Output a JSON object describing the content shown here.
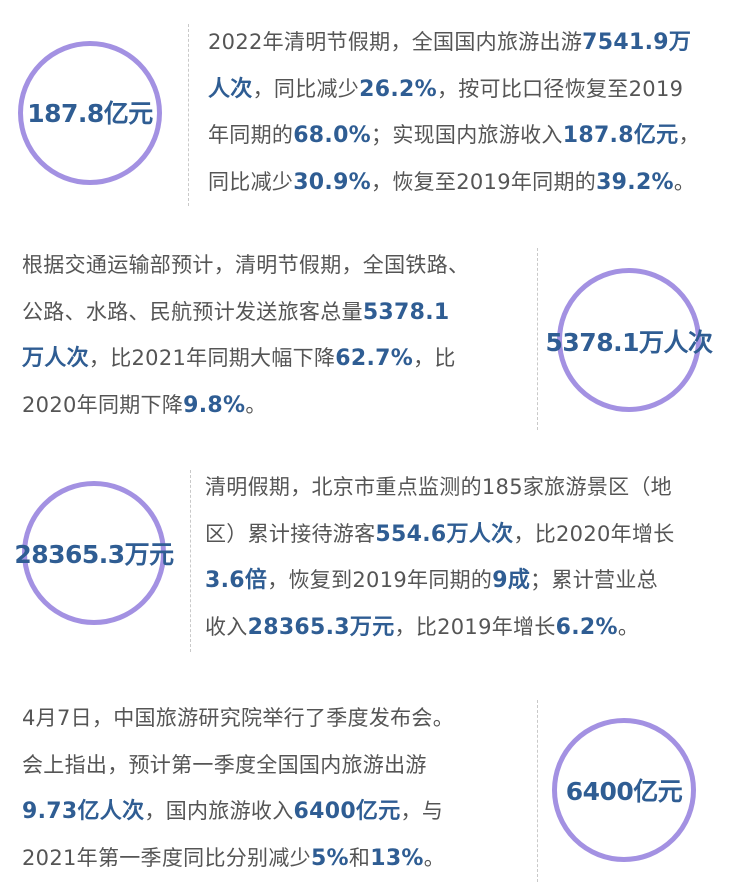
{
  "colors": {
    "circle": "#a391e2",
    "highlight": "#2f5d93",
    "text": "#555555"
  },
  "blocks": [
    {
      "circle_label": "187.8亿元",
      "lines": [
        [
          {
            "t": "2022年清明节假期，全国国内旅游出游"
          },
          {
            "t": "7541.9万",
            "b": true
          }
        ],
        [
          {
            "t": "人次",
            "b": true
          },
          {
            "t": "，同比减少"
          },
          {
            "t": "26.2%",
            "b": true
          },
          {
            "t": "，按可比口径恢复至2019"
          }
        ],
        [
          {
            "t": "年同期的"
          },
          {
            "t": "68.0%",
            "b": true
          },
          {
            "t": "；实现国内旅游收入"
          },
          {
            "t": "187.8亿元",
            "b": true
          },
          {
            "t": "，"
          }
        ],
        [
          {
            "t": "同比减少"
          },
          {
            "t": "30.9%",
            "b": true
          },
          {
            "t": "，恢复至2019年同期的"
          },
          {
            "t": "39.2%",
            "b": true
          },
          {
            "t": "。"
          }
        ]
      ]
    },
    {
      "circle_label": "5378.1万人次",
      "lines": [
        [
          {
            "t": "根据交通运输部预计，清明节假期，全国铁路、"
          }
        ],
        [
          {
            "t": "公路、水路、民航预计发送旅客总量"
          },
          {
            "t": "5378.1",
            "b": true
          }
        ],
        [
          {
            "t": "万人次",
            "b": true
          },
          {
            "t": "，比2021年同期大幅下降"
          },
          {
            "t": "62.7%",
            "b": true
          },
          {
            "t": "，比"
          }
        ],
        [
          {
            "t": "2020年同期下降"
          },
          {
            "t": "9.8%",
            "b": true
          },
          {
            "t": "。"
          }
        ]
      ]
    },
    {
      "circle_label": "28365.3万元",
      "lines": [
        [
          {
            "t": "清明假期，北京市重点监测的185家旅游景区（地"
          }
        ],
        [
          {
            "t": "区）累计接待游客"
          },
          {
            "t": "554.6万人次",
            "b": true
          },
          {
            "t": "，比2020年增长"
          }
        ],
        [
          {
            "t": "3.6倍",
            "b": true
          },
          {
            "t": "，恢复到2019年同期的"
          },
          {
            "t": "9成",
            "b": true
          },
          {
            "t": "；累计营业总"
          }
        ],
        [
          {
            "t": "收入"
          },
          {
            "t": "28365.3万元",
            "b": true
          },
          {
            "t": "，比2019年增长"
          },
          {
            "t": "6.2%",
            "b": true
          },
          {
            "t": "。"
          }
        ]
      ]
    },
    {
      "circle_label": "6400亿元",
      "lines": [
        [
          {
            "t": "4月7日，中国旅游研究院举行了季度发布会。"
          }
        ],
        [
          {
            "t": "会上指出，预计第一季度全国国内旅游出游"
          }
        ],
        [
          {
            "t": "9.73亿人次",
            "b": true
          },
          {
            "t": "，国内旅游收入"
          },
          {
            "t": "6400亿元",
            "b": true
          },
          {
            "t": "，与"
          }
        ],
        [
          {
            "t": "2021年第一季度同比分别减少"
          },
          {
            "t": "5%",
            "b": true
          },
          {
            "t": "和"
          },
          {
            "t": "13%",
            "b": true
          },
          {
            "t": "。"
          }
        ]
      ]
    }
  ]
}
